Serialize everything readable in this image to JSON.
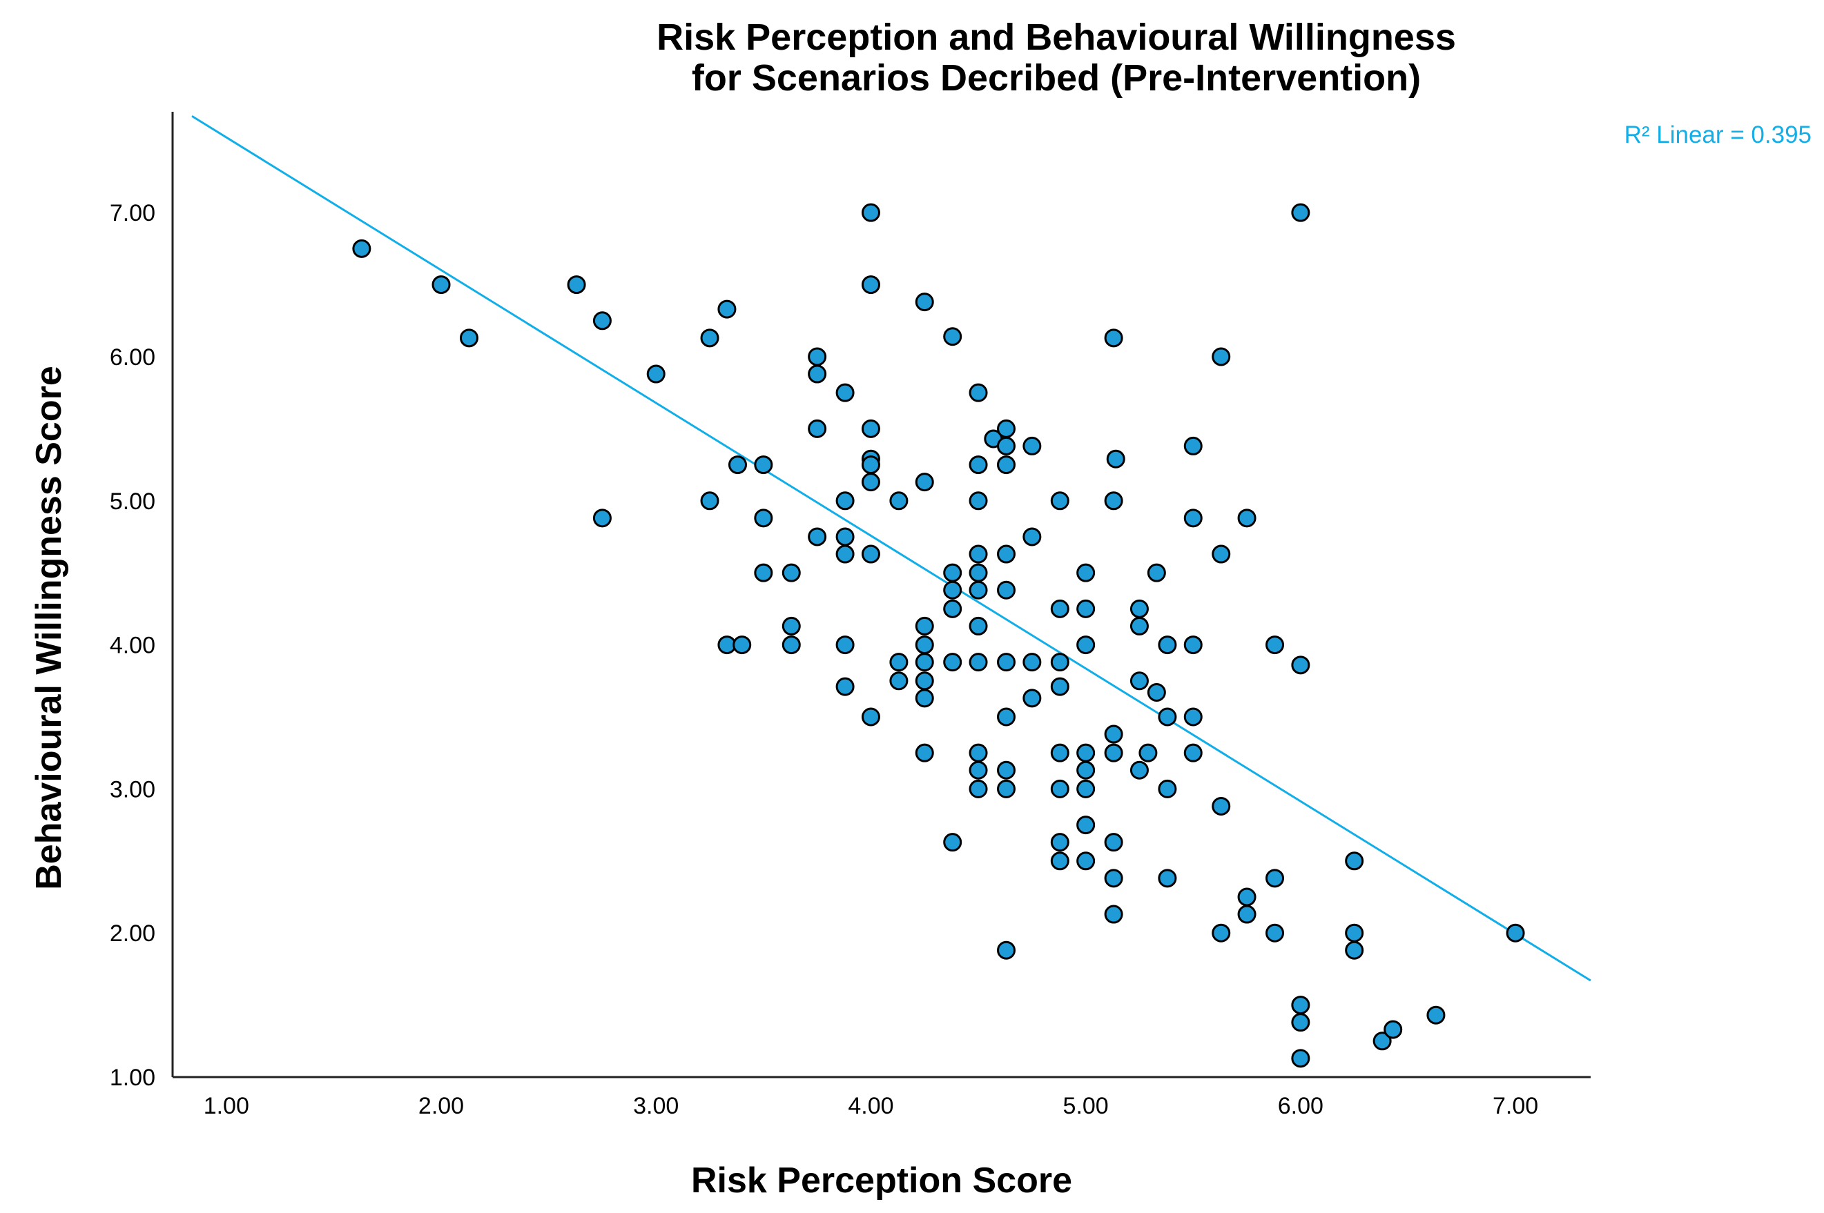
{
  "chart_data": {
    "type": "scatter",
    "title_lines": [
      "Risk Perception and Behavioural Willingness",
      "for Scenarios Decribed (Pre-Intervention)"
    ],
    "xlabel": "Risk Perception Score",
    "ylabel": "Behavioural Willingness Score",
    "xlim": [
      0.75,
      7.35
    ],
    "ylim": [
      1.0,
      7.7
    ],
    "x_ticks": [
      1,
      2,
      3,
      4,
      5,
      6,
      7
    ],
    "x_tick_labels": [
      "1.00",
      "2.00",
      "3.00",
      "4.00",
      "5.00",
      "6.00",
      "7.00"
    ],
    "y_ticks": [
      1,
      2,
      3,
      4,
      5,
      6,
      7
    ],
    "y_tick_labels": [
      "1.00",
      "2.00",
      "3.00",
      "4.00",
      "5.00",
      "6.00",
      "7.00"
    ],
    "grid": false,
    "marker_color": "#1f9bd8",
    "marker_edge_color": "#000000",
    "fit_line": {
      "label": "R² Linear = 0.395",
      "color": "#12aee8",
      "x": [
        0.84,
        7.35
      ],
      "y": [
        7.67,
        1.67
      ]
    },
    "points": [
      [
        1.63,
        6.75
      ],
      [
        2.0,
        6.5
      ],
      [
        2.13,
        6.13
      ],
      [
        2.63,
        6.5
      ],
      [
        2.75,
        6.25
      ],
      [
        2.75,
        4.88
      ],
      [
        3.0,
        5.88
      ],
      [
        3.25,
        6.13
      ],
      [
        3.25,
        5.0
      ],
      [
        3.33,
        6.33
      ],
      [
        3.38,
        5.25
      ],
      [
        3.5,
        5.25
      ],
      [
        3.5,
        4.88
      ],
      [
        3.5,
        4.5
      ],
      [
        3.33,
        4.0
      ],
      [
        3.4,
        4.0
      ],
      [
        3.63,
        4.5
      ],
      [
        3.63,
        4.13
      ],
      [
        3.63,
        4.0
      ],
      [
        3.75,
        6.0
      ],
      [
        3.75,
        5.88
      ],
      [
        3.75,
        5.5
      ],
      [
        3.75,
        4.75
      ],
      [
        3.88,
        5.75
      ],
      [
        3.88,
        5.0
      ],
      [
        3.88,
        4.75
      ],
      [
        3.88,
        4.63
      ],
      [
        3.88,
        4.0
      ],
      [
        3.88,
        3.71
      ],
      [
        4.0,
        7.0
      ],
      [
        4.0,
        6.5
      ],
      [
        4.0,
        5.5
      ],
      [
        4.0,
        5.29
      ],
      [
        4.0,
        5.25
      ],
      [
        4.0,
        5.13
      ],
      [
        4.0,
        4.63
      ],
      [
        4.0,
        3.5
      ],
      [
        4.13,
        5.0
      ],
      [
        4.13,
        3.88
      ],
      [
        4.13,
        3.75
      ],
      [
        4.25,
        6.38
      ],
      [
        4.25,
        5.13
      ],
      [
        4.25,
        4.13
      ],
      [
        4.25,
        4.0
      ],
      [
        4.25,
        3.88
      ],
      [
        4.25,
        3.75
      ],
      [
        4.25,
        3.63
      ],
      [
        4.25,
        3.25
      ],
      [
        4.38,
        6.14
      ],
      [
        4.38,
        4.5
      ],
      [
        4.38,
        4.38
      ],
      [
        4.38,
        4.25
      ],
      [
        4.38,
        3.88
      ],
      [
        4.38,
        2.63
      ],
      [
        4.5,
        5.75
      ],
      [
        4.5,
        5.25
      ],
      [
        4.5,
        5.0
      ],
      [
        4.5,
        4.63
      ],
      [
        4.5,
        4.5
      ],
      [
        4.5,
        4.38
      ],
      [
        4.5,
        4.13
      ],
      [
        4.5,
        3.88
      ],
      [
        4.5,
        3.25
      ],
      [
        4.5,
        3.13
      ],
      [
        4.5,
        3.0
      ],
      [
        4.57,
        5.43
      ],
      [
        4.63,
        5.5
      ],
      [
        4.63,
        5.38
      ],
      [
        4.63,
        5.25
      ],
      [
        4.63,
        4.63
      ],
      [
        4.63,
        4.38
      ],
      [
        4.63,
        3.88
      ],
      [
        4.63,
        3.5
      ],
      [
        4.63,
        3.13
      ],
      [
        4.63,
        3.0
      ],
      [
        4.63,
        1.88
      ],
      [
        4.75,
        5.38
      ],
      [
        4.75,
        4.75
      ],
      [
        4.75,
        3.88
      ],
      [
        4.75,
        3.63
      ],
      [
        4.88,
        5.0
      ],
      [
        4.88,
        4.25
      ],
      [
        4.88,
        3.88
      ],
      [
        4.88,
        3.71
      ],
      [
        4.88,
        3.25
      ],
      [
        4.88,
        3.0
      ],
      [
        4.88,
        2.63
      ],
      [
        4.88,
        2.5
      ],
      [
        5.0,
        4.5
      ],
      [
        5.0,
        4.25
      ],
      [
        5.0,
        4.0
      ],
      [
        5.0,
        3.25
      ],
      [
        5.0,
        3.13
      ],
      [
        5.0,
        3.0
      ],
      [
        5.0,
        2.75
      ],
      [
        5.0,
        2.5
      ],
      [
        5.13,
        6.13
      ],
      [
        5.13,
        5.0
      ],
      [
        5.13,
        3.38
      ],
      [
        5.13,
        3.25
      ],
      [
        5.13,
        2.63
      ],
      [
        5.13,
        2.38
      ],
      [
        5.13,
        2.13
      ],
      [
        5.14,
        5.29
      ],
      [
        5.25,
        4.25
      ],
      [
        5.25,
        4.13
      ],
      [
        5.25,
        3.75
      ],
      [
        5.25,
        3.13
      ],
      [
        5.29,
        3.25
      ],
      [
        5.33,
        4.5
      ],
      [
        5.33,
        3.67
      ],
      [
        5.38,
        4.0
      ],
      [
        5.38,
        3.5
      ],
      [
        5.38,
        3.0
      ],
      [
        5.38,
        2.38
      ],
      [
        5.5,
        5.38
      ],
      [
        5.5,
        4.88
      ],
      [
        5.5,
        4.0
      ],
      [
        5.5,
        3.5
      ],
      [
        5.5,
        3.25
      ],
      [
        5.63,
        6.0
      ],
      [
        5.63,
        4.63
      ],
      [
        5.63,
        2.88
      ],
      [
        5.63,
        2.0
      ],
      [
        5.75,
        4.88
      ],
      [
        5.75,
        2.25
      ],
      [
        5.75,
        2.13
      ],
      [
        5.88,
        4.0
      ],
      [
        5.88,
        2.38
      ],
      [
        5.88,
        2.0
      ],
      [
        6.0,
        7.0
      ],
      [
        6.0,
        3.86
      ],
      [
        6.0,
        1.5
      ],
      [
        6.0,
        1.38
      ],
      [
        6.0,
        1.13
      ],
      [
        6.25,
        2.5
      ],
      [
        6.25,
        2.0
      ],
      [
        6.25,
        1.88
      ],
      [
        6.38,
        1.25
      ],
      [
        6.43,
        1.33
      ],
      [
        6.63,
        1.43
      ],
      [
        7.0,
        2.0
      ]
    ]
  }
}
